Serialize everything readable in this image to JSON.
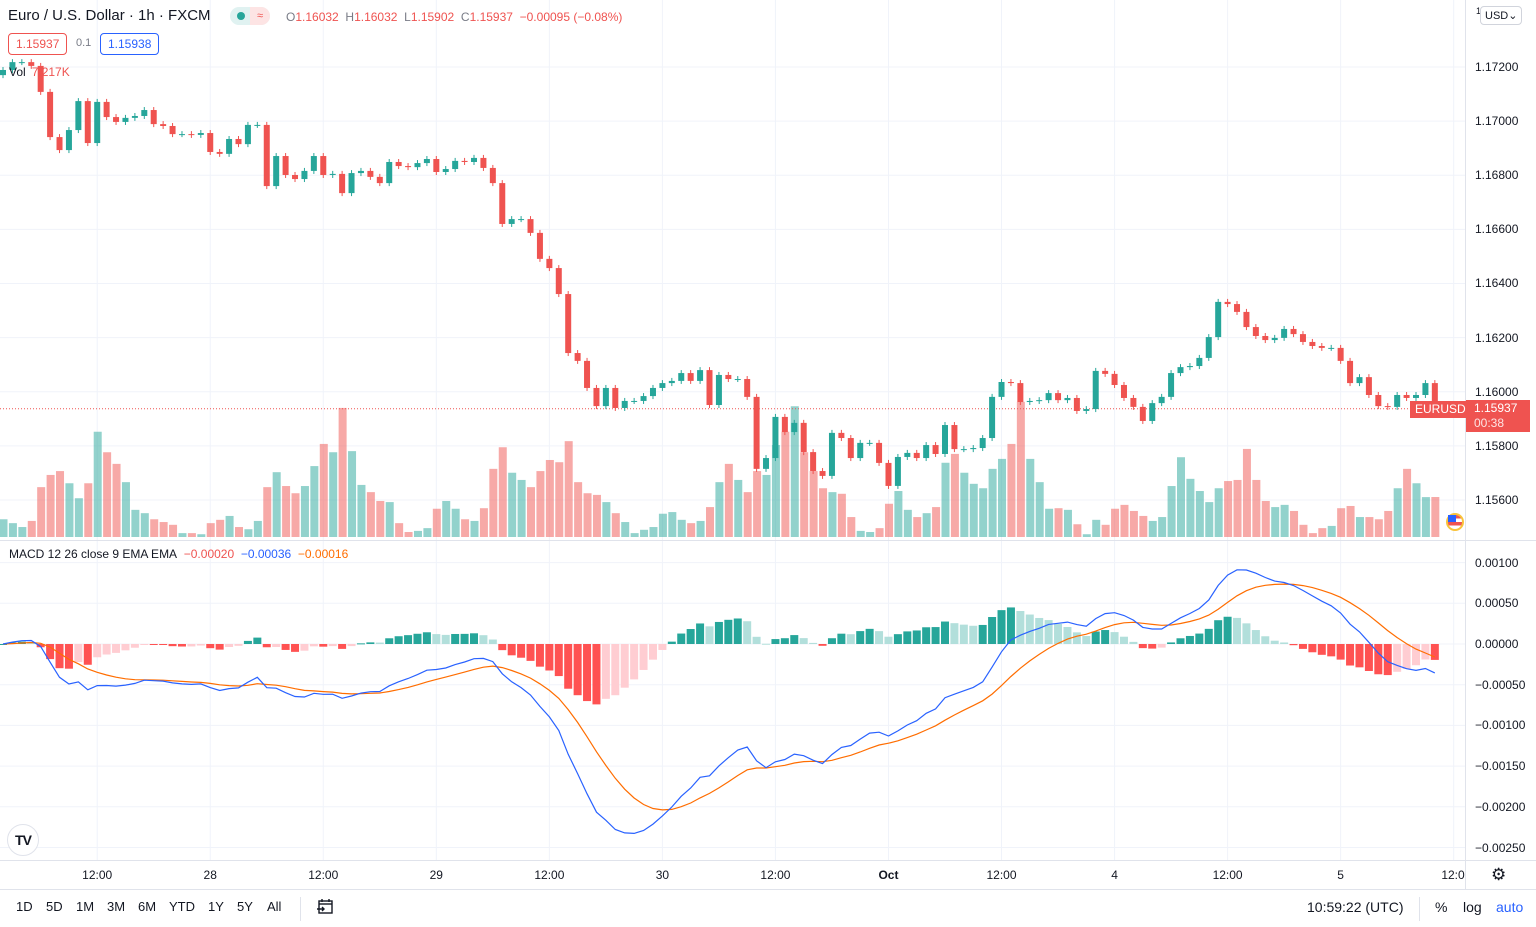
{
  "header": {
    "title": "Euro / U.S. Dollar · 1h · FXCM",
    "status_icon": "market-open-dot",
    "ohlc": {
      "o_label": "O",
      "o": "1.16032",
      "h_label": "H",
      "h": "1.16032",
      "l_label": "L",
      "l": "1.15902",
      "c_label": "C",
      "c": "1.15937",
      "change": "−0.00095 (−0.08%)"
    },
    "sell_price": "1.15937",
    "spread": "0.1",
    "buy_price": "1.15938",
    "vol_label": "Vol",
    "vol_value": "7.217K"
  },
  "price_scale": {
    "currency": "USD",
    "marker": "1",
    "symbol_label": "EURUSD",
    "last_price": "1.15937",
    "countdown": "00:38"
  },
  "macd_legend": {
    "name": "MACD 12 26 close 9 EMA EMA",
    "hist": "−0.00020",
    "macd": "−0.00036",
    "signal": "−0.00016"
  },
  "time_axis": {
    "labels": [
      "12:00",
      "28",
      "12:00",
      "29",
      "12:00",
      "30",
      "12:00",
      "Oct",
      "12:00",
      "4",
      "12:00",
      "5",
      "12:0"
    ]
  },
  "toolbar": {
    "ranges": [
      "1D",
      "5D",
      "1M",
      "3M",
      "6M",
      "YTD",
      "1Y",
      "5Y",
      "All"
    ],
    "clock": "10:59:22 (UTC)",
    "percent": "%",
    "log": "log",
    "auto": "auto"
  },
  "colors": {
    "up": "#26a69a",
    "down": "#ef5350",
    "macd_line": "#2962ff",
    "signal_line": "#ff6d00",
    "hist_up_strong": "#26a69a",
    "hist_up_weak": "#b2dfdb",
    "hist_down_strong": "#ff5252",
    "hist_down_weak": "#ffcdd2"
  },
  "chart_data": [
    {
      "type": "candlestick",
      "symbol": "EURUSD",
      "interval": "1h",
      "y_ticks": [
        "1.17200",
        "1.17000",
        "1.16800",
        "1.16600",
        "1.16400",
        "1.16200",
        "1.16000",
        "1.15800",
        "1.15600"
      ],
      "ylim": [
        1.1551,
        1.1744
      ],
      "first_open": 1.1717,
      "close": [
        1.17189,
        1.17218,
        1.17218,
        1.17204,
        1.17108,
        1.16941,
        1.16893,
        1.16967,
        1.17074,
        1.16919,
        1.17071,
        1.17015,
        1.16997,
        1.17012,
        1.17019,
        1.17041,
        1.16989,
        1.16982,
        1.16952,
        1.16952,
        1.16949,
        1.16956,
        1.16886,
        1.16879,
        1.16934,
        1.16915,
        1.16986,
        1.16986,
        1.1676,
        1.16871,
        1.16801,
        1.16786,
        1.16816,
        1.16871,
        1.16801,
        1.16805,
        1.16734,
        1.16808,
        1.16816,
        1.16794,
        1.16771,
        1.16849,
        1.16834,
        1.1683,
        1.16845,
        1.1686,
        1.16812,
        1.16823,
        1.16853,
        1.16849,
        1.16864,
        1.16827,
        1.16771,
        1.1662,
        1.16638,
        1.16638,
        1.16587,
        1.16491,
        1.16457,
        1.16361,
        1.16143,
        1.16114,
        1.16014,
        1.15947,
        1.16014,
        1.1594,
        1.15966,
        1.15966,
        1.15984,
        1.16014,
        1.16032,
        1.1604,
        1.16069,
        1.1604,
        1.1608,
        1.15951,
        1.16062,
        1.16047,
        1.16047,
        1.15981,
        1.15715,
        1.15755,
        1.15907,
        1.15851,
        1.15885,
        1.15777,
        1.15707,
        1.15689,
        1.15848,
        1.15829,
        1.15755,
        1.15811,
        1.15811,
        1.15737,
        1.15652,
        1.15759,
        1.15774,
        1.15755,
        1.15803,
        1.1577,
        1.15877,
        1.15788,
        1.15788,
        1.15792,
        1.15829,
        1.15981,
        1.16036,
        1.16032,
        1.15962,
        1.15966,
        1.15969,
        1.15995,
        1.15969,
        1.15977,
        1.15929,
        1.15936,
        1.16077,
        1.16066,
        1.16025,
        1.15977,
        1.15944,
        1.15892,
        1.15958,
        1.15981,
        1.16069,
        1.16091,
        1.16095,
        1.16125,
        1.16202,
        1.16332,
        1.16324,
        1.16295,
        1.16239,
        1.16206,
        1.16191,
        1.16199,
        1.16232,
        1.16213,
        1.16184,
        1.16169,
        1.16162,
        1.16162,
        1.16114,
        1.16032,
        1.16054,
        1.15988,
        1.15947,
        1.15944,
        1.15988,
        1.15977,
        1.15988,
        1.16032,
        1.15937
      ],
      "volume_k": [
        3.2,
        2.5,
        1.8,
        2.9,
        9.0,
        11.2,
        11.9,
        9.7,
        7.0,
        9.7,
        19.0,
        15.3,
        13.2,
        9.9,
        4.9,
        4.3,
        3.2,
        2.7,
        2.2,
        0.7,
        0.7,
        0.5,
        2.5,
        3.1,
        3.8,
        1.8,
        1.4,
        2.9,
        9.0,
        11.7,
        9.2,
        7.9,
        9.2,
        12.8,
        16.8,
        15.3,
        23.3,
        15.5,
        9.4,
        8.1,
        6.5,
        6.3,
        2.5,
        0.9,
        1.1,
        1.6,
        5.1,
        6.5,
        5.1,
        3.2,
        2.9,
        5.2,
        12.3,
        16.2,
        11.6,
        10.3,
        9.0,
        11.9,
        13.9,
        13.5,
        17.3,
        9.9,
        7.9,
        7.6,
        6.3,
        4.3,
        2.7,
        0.7,
        1.3,
        1.8,
        4.2,
        4.5,
        3.1,
        2.5,
        2.9,
        5.4,
        9.9,
        13.2,
        10.3,
        8.1,
        11.9,
        11.2,
        16.6,
        19.0,
        23.6,
        15.3,
        11.9,
        8.8,
        8.1,
        7.8,
        3.6,
        1.1,
        0.9,
        1.6,
        6.0,
        8.3,
        4.9,
        3.6,
        4.3,
        5.4,
        13.4,
        15.0,
        11.6,
        9.6,
        8.8,
        12.3,
        14.1,
        16.8,
        24.4,
        14.1,
        9.9,
        5.1,
        5.2,
        4.9,
        2.3,
        0.5,
        3.1,
        2.2,
        5.1,
        5.8,
        4.7,
        3.8,
        2.9,
        3.6,
        9.2,
        14.4,
        10.5,
        8.3,
        6.3,
        8.8,
        10.1,
        10.3,
        15.9,
        10.3,
        6.5,
        5.4,
        5.8,
        4.7,
        2.2,
        0.7,
        1.6,
        2.0,
        5.2,
        5.6,
        3.6,
        3.6,
        3.2,
        4.7,
        8.8,
        12.3,
        9.7,
        7.2,
        7.217
      ]
    },
    {
      "type": "macd",
      "fast": 12,
      "slow": 26,
      "signal": 9,
      "source": "close",
      "y_ticks": [
        "0.00100",
        "0.00050",
        "0.00000",
        "−0.00050",
        "−0.00100",
        "−0.00150",
        "−0.00200",
        "−0.00250"
      ],
      "ylim": [
        -0.00265,
        0.00127
      ],
      "last": {
        "histogram": -0.0002,
        "macd": -0.00036,
        "signal": -0.00016
      }
    }
  ]
}
